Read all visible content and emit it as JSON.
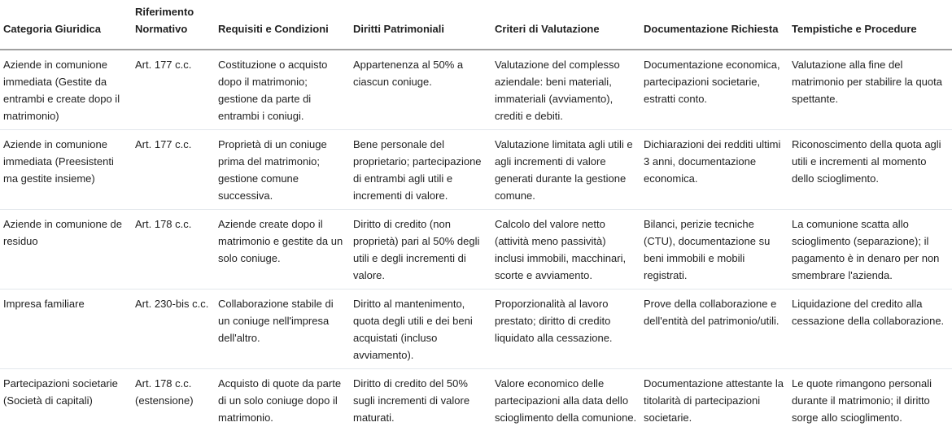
{
  "table": {
    "headers": [
      "Categoria Giuridica",
      "Riferimento Normativo",
      "Requisiti e Condizioni",
      "Diritti Patrimoniali",
      "Criteri di Valutazione",
      "Documentazione Richiesta",
      "Tempistiche e Procedure"
    ],
    "rows": [
      [
        "Aziende in comunione immediata (Gestite da entrambi e create dopo il matrimonio)",
        "Art. 177 c.c.",
        "Costituzione o acquisto dopo il matrimonio; gestione da parte di entrambi i coniugi.",
        "Appartenenza al 50% a ciascun coniuge.",
        "Valutazione del complesso aziendale: beni materiali, immateriali (avviamento), crediti e debiti.",
        "Documentazione economica, partecipazioni societarie, estratti conto.",
        "Valutazione alla fine del matrimonio per stabilire la quota spettante."
      ],
      [
        "Aziende in comunione immediata (Preesistenti ma gestite insieme)",
        "Art. 177 c.c.",
        "Proprietà di un coniuge prima del matrimonio; gestione comune successiva.",
        "Bene personale del proprietario; partecipazione di entrambi agli utili e incrementi di valore.",
        "Valutazione limitata agli utili e agli incrementi di valore generati durante la gestione comune.",
        "Dichiarazioni dei redditi ultimi 3 anni, documentazione economica.",
        "Riconoscimento della quota agli utili e incrementi al momento dello scioglimento."
      ],
      [
        "Aziende in comunione de residuo",
        "Art. 178 c.c.",
        "Aziende create dopo il matrimonio e gestite da un solo coniuge.",
        "Diritto di credito (non proprietà) pari al 50% degli utili e degli incrementi di valore.",
        "Calcolo del valore netto (attività meno passività) inclusi immobili, macchinari, scorte e avviamento.",
        "Bilanci, perizie tecniche (CTU), documentazione su beni immobili e mobili registrati.",
        "La comunione scatta allo scioglimento (separazione); il pagamento è in denaro per non smembrare l'azienda."
      ],
      [
        "Impresa familiare",
        "Art. 230-bis c.c.",
        "Collaborazione stabile di un coniuge nell'impresa dell'altro.",
        "Diritto al mantenimento, quota degli utili e dei beni acquistati (incluso avviamento).",
        "Proporzionalità al lavoro prestato; diritto di credito liquidato alla cessazione.",
        "Prove della collaborazione e dell'entità del patrimonio/utili.",
        "Liquidazione del credito alla cessazione della collaborazione."
      ],
      [
        "Partecipazioni societarie (Società di capitali)",
        "Art. 178 c.c. (estensione)",
        "Acquisto di quote da parte di un solo coniuge dopo il matrimonio.",
        "Diritto di credito del 50% sugli incrementi di valore maturati.",
        "Valore economico delle partecipazioni alla data dello scioglimento della comunione.",
        "Documentazione attestante la titolarità di partecipazioni societarie.",
        "Le quote rimangono personali durante il matrimonio; il diritto sorge allo scioglimento."
      ]
    ]
  }
}
